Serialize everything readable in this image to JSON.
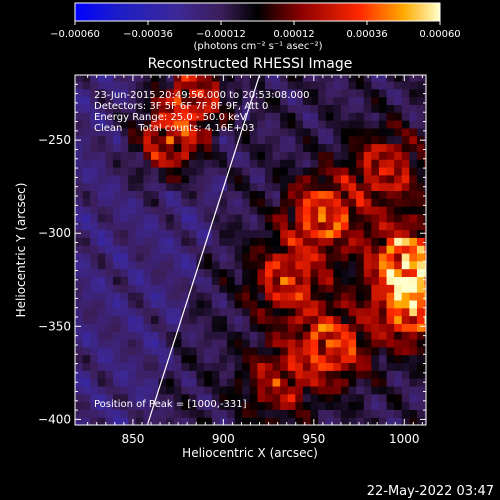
{
  "chart_data": {
    "type": "heatmap",
    "title": "Reconstructed RHESSI Image",
    "xlabel": "Heliocentric X (arcsec)",
    "ylabel": "Heliocentric Y (arcsec)",
    "xlim": [
      818,
      1012
    ],
    "ylim": [
      -403,
      -215
    ],
    "x_ticks": [
      850,
      900,
      950,
      1000
    ],
    "y_ticks": [
      -400,
      -350,
      -300,
      -250
    ],
    "x_tick_labels": [
      "850",
      "900",
      "950",
      "1000"
    ],
    "y_tick_labels": [
      "−400",
      "−350",
      "−300",
      "−250"
    ],
    "colorbar": {
      "range": [
        -0.0006,
        0.0006
      ],
      "ticks": [
        -0.0006,
        -0.00036,
        -0.00012,
        0.00012,
        0.00036,
        0.0006
      ],
      "tick_labels": [
        "−0.00060",
        "−0.00036",
        "−0.00012",
        "0.00012",
        "0.00036",
        "0.00060"
      ],
      "unit_label": "(photons cm⁻² s⁻¹ asec⁻²)"
    },
    "annotations": [
      "23-Jun-2015 20:49:56.000 to 20:53:08.000",
      "Detectors: 3F 5F 6F 7F 8F 9F, Att 0",
      "Energy Range: 25.0 - 50.0 keV",
      "Clean     Total counts: 4.16E+03"
    ],
    "peak_label": "Position of Peak = [1000,-331]",
    "peak_position": [
      1000,
      -331
    ],
    "limb_line": [
      [
        858,
        -403
      ],
      [
        920,
        -215
      ]
    ],
    "bright_regions": [
      {
        "x": 1001,
        "y": -315,
        "intensity": 0.00058
      },
      {
        "x": 1005,
        "y": -340,
        "intensity": 0.0005
      },
      {
        "x": 955,
        "y": -290,
        "intensity": 0.00045
      },
      {
        "x": 960,
        "y": -360,
        "intensity": 0.00042
      },
      {
        "x": 935,
        "y": -325,
        "intensity": 0.00035
      },
      {
        "x": 870,
        "y": -250,
        "intensity": 0.0004
      },
      {
        "x": 885,
        "y": -225,
        "intensity": 0.00035
      },
      {
        "x": 990,
        "y": -265,
        "intensity": 0.0003
      },
      {
        "x": 930,
        "y": -380,
        "intensity": 0.00022
      }
    ],
    "grid": false
  },
  "footer": {
    "timestamp": "22-May-2022 03:47"
  }
}
